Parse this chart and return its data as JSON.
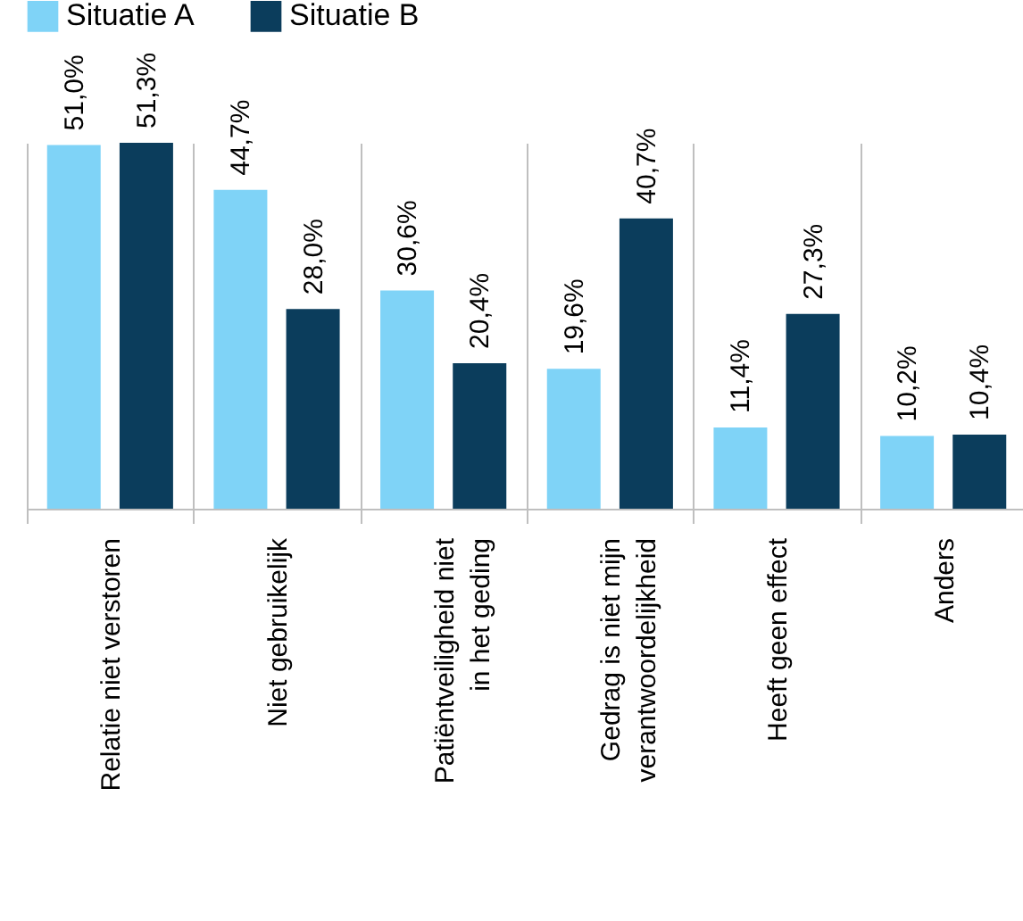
{
  "chart_data": {
    "type": "bar",
    "categories": [
      "Relatie niet verstoren",
      "Niet gebruikelijk",
      "Patiëntveiligheid niet in het geding",
      "Gedrag is niet mijn verantwoordelijkheid",
      "Heeft geen effect",
      "Anders"
    ],
    "series": [
      {
        "name": "Situatie A",
        "color": "#7fd3f7",
        "values": [
          51.0,
          44.7,
          30.6,
          19.6,
          11.4,
          10.2
        ],
        "value_labels": [
          "51,0%",
          "44,7%",
          "30,6%",
          "19,6%",
          "11,4%",
          "10,2%"
        ]
      },
      {
        "name": "Situatie B",
        "color": "#0b3d5c",
        "values": [
          51.3,
          28.0,
          20.4,
          40.7,
          27.3,
          10.4
        ],
        "value_labels": [
          "51,3%",
          "28,0%",
          "20,4%",
          "40,7%",
          "27,3%",
          "10,4%"
        ]
      }
    ],
    "grid": "x",
    "legend": "top"
  }
}
